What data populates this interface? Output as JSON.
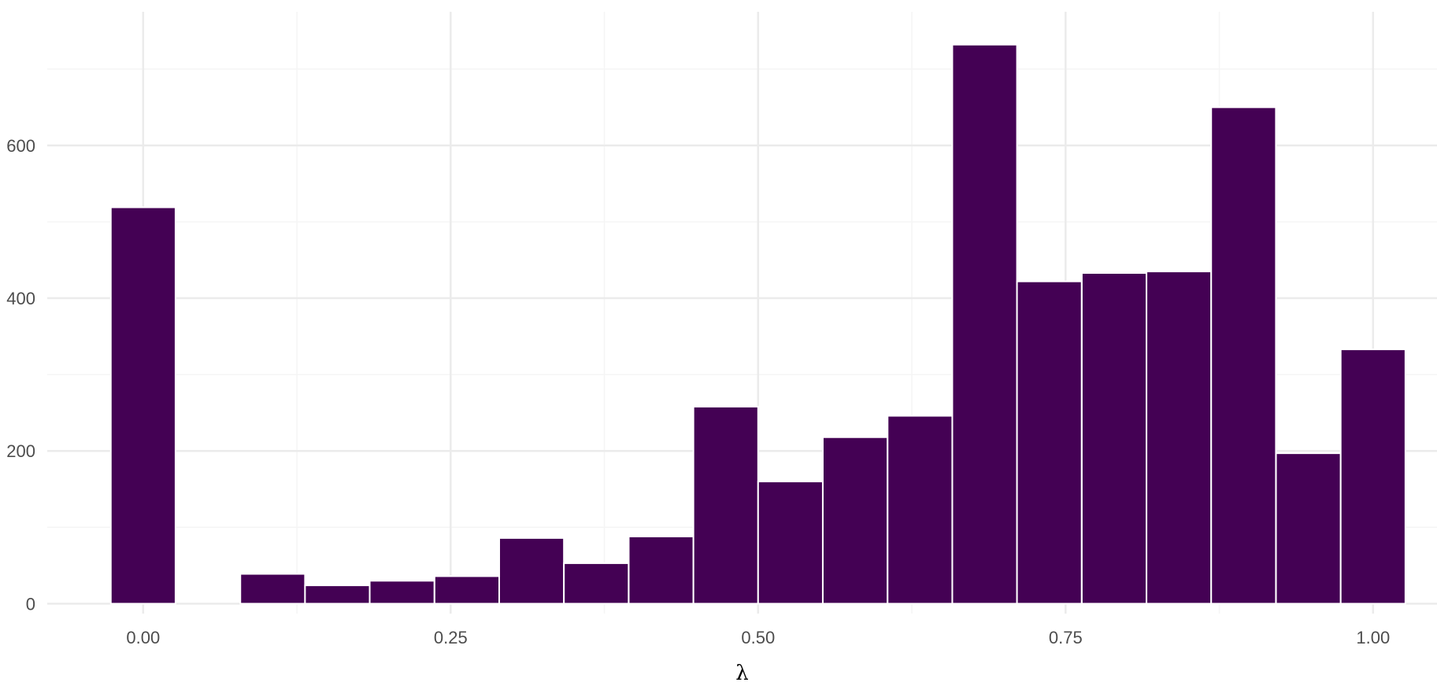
{
  "chart_data": {
    "type": "bar",
    "title": "",
    "xlabel": "λ",
    "ylabel": "",
    "bin_width": 0.0526,
    "bin_centers": [
      0.0,
      0.0526,
      0.1053,
      0.1579,
      0.2105,
      0.2632,
      0.3158,
      0.3684,
      0.4211,
      0.4737,
      0.5263,
      0.5789,
      0.6316,
      0.6842,
      0.7368,
      0.7895,
      0.8421,
      0.8947,
      0.9474,
      1.0
    ],
    "values": [
      519,
      0,
      39,
      24,
      30,
      36,
      86,
      53,
      88,
      258,
      160,
      218,
      246,
      732,
      422,
      433,
      435,
      650,
      197,
      333
    ],
    "xlim": [
      -0.078,
      1.052
    ],
    "ylim": [
      -13,
      775
    ],
    "x_ticks": [
      0.0,
      0.25,
      0.5,
      0.75,
      1.0
    ],
    "x_tick_labels": [
      "0.00",
      "0.25",
      "0.50",
      "0.75",
      "1.00"
    ],
    "y_ticks": [
      0,
      200,
      400,
      600
    ],
    "y_tick_labels": [
      "0",
      "200",
      "400",
      "600"
    ],
    "grid": true,
    "bar_color": "#440154",
    "bar_outline_color": "#ffffff",
    "grid_major_color": "#ebebeb",
    "grid_minor_color": "#f5f5f5"
  }
}
